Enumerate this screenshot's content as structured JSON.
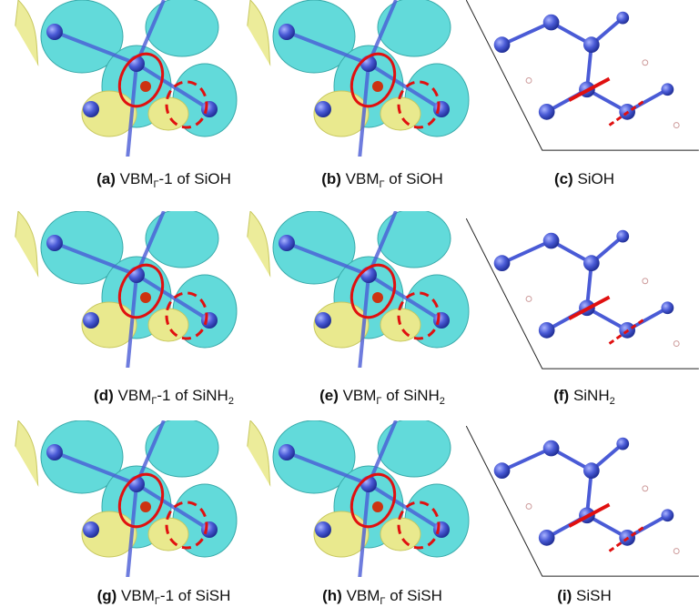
{
  "panels": [
    {
      "caption": [
        {
          "t": "(a)",
          "style": "bold"
        },
        {
          "t": " VBM"
        },
        {
          "t": "Γ",
          "style": "sub"
        },
        {
          "t": "-1 of SiOH"
        }
      ]
    },
    {
      "caption": [
        {
          "t": "(b)",
          "style": "bold"
        },
        {
          "t": " VBM"
        },
        {
          "t": "Γ",
          "style": "sub"
        },
        {
          "t": " of SiOH"
        }
      ]
    },
    {
      "caption": [
        {
          "t": "(c)",
          "style": "bold"
        },
        {
          "t": " SiOH"
        }
      ]
    },
    {
      "caption": [
        {
          "t": "(d)",
          "style": "bold"
        },
        {
          "t": " VBM"
        },
        {
          "t": "Γ",
          "style": "sub"
        },
        {
          "t": "-1 of SiNH"
        },
        {
          "t": "2",
          "style": "sub"
        }
      ]
    },
    {
      "caption": [
        {
          "t": "(e)",
          "style": "bold"
        },
        {
          "t": " VBM"
        },
        {
          "t": "Γ",
          "style": "sub"
        },
        {
          "t": " of SiNH"
        },
        {
          "t": "2",
          "style": "sub"
        }
      ]
    },
    {
      "caption": [
        {
          "t": "(f)",
          "style": "bold"
        },
        {
          "t": " SiNH"
        },
        {
          "t": "2",
          "style": "sub"
        }
      ]
    },
    {
      "caption": [
        {
          "t": "(g)",
          "style": "bold"
        },
        {
          "t": " VBM"
        },
        {
          "t": "Γ",
          "style": "sub"
        },
        {
          "t": "-1 of SiSH"
        }
      ]
    },
    {
      "caption": [
        {
          "t": "(h)",
          "style": "bold"
        },
        {
          "t": " VBM"
        },
        {
          "t": "Γ",
          "style": "sub"
        },
        {
          "t": " of SiSH"
        }
      ]
    },
    {
      "caption": [
        {
          "t": "(i)",
          "style": "bold"
        },
        {
          "t": " SiSH"
        }
      ]
    }
  ]
}
